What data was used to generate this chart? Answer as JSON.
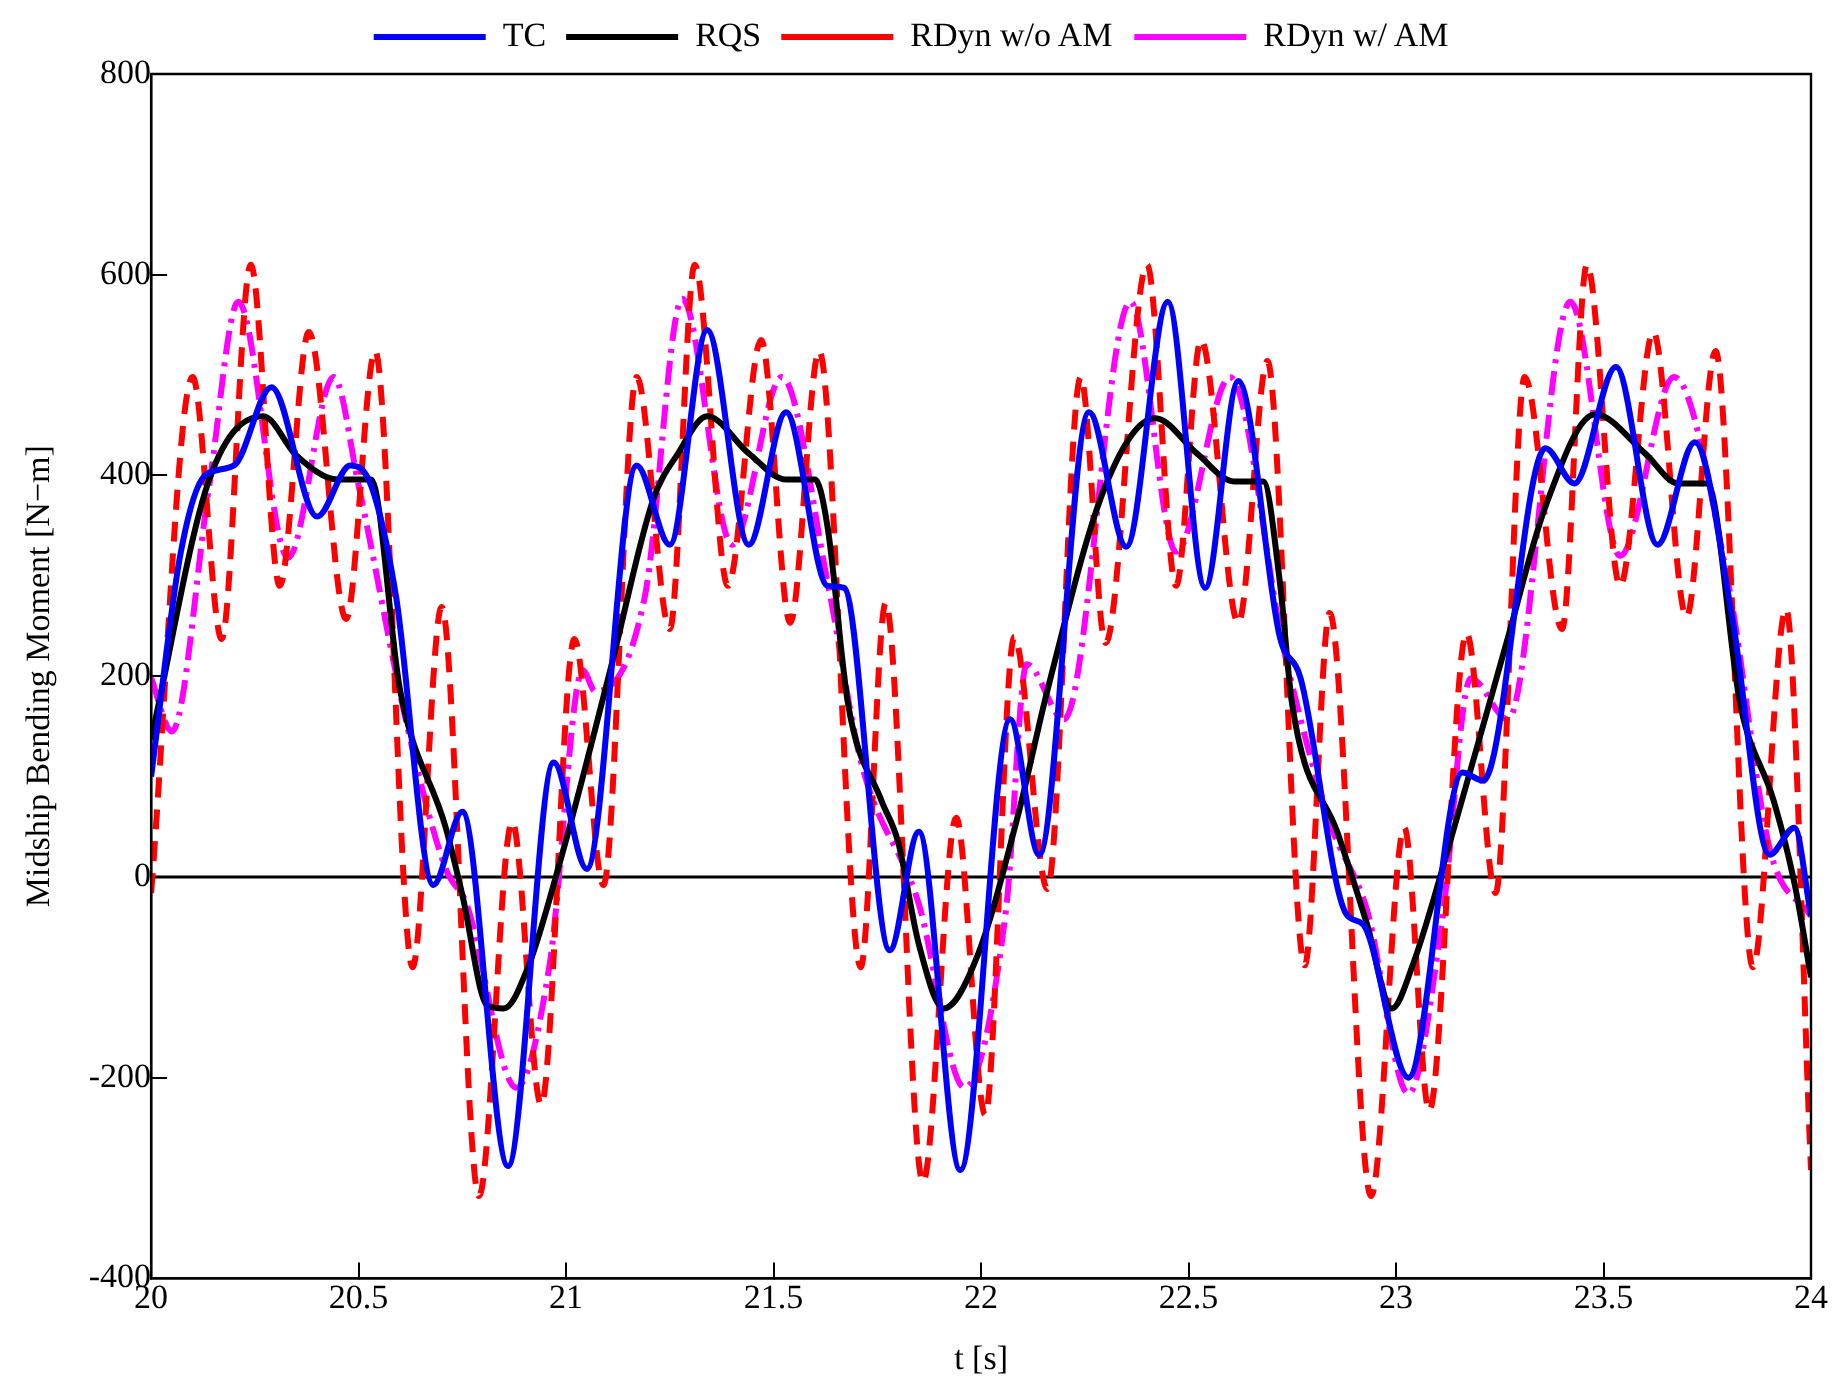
{
  "chart_data": {
    "type": "line",
    "xlabel": "t [s]",
    "ylabel": "Midship Bending Moment [N−m]",
    "xlim": [
      20,
      24
    ],
    "ylim": [
      -400,
      800
    ],
    "xticks": [
      20,
      20.5,
      21,
      21.5,
      22,
      22.5,
      23,
      23.5,
      24
    ],
    "yticks": [
      -400,
      -200,
      0,
      200,
      400,
      600,
      800
    ],
    "grid": false,
    "legend": "top",
    "marker": "none",
    "ref_lines": [
      {
        "axis": "y",
        "value": 0,
        "color": "#000000"
      }
    ],
    "series": [
      {
        "name": "TC",
        "color": "#0000ff",
        "line_style": "solid",
        "x": [
          20,
          20.07,
          20.13,
          20.2,
          20.29,
          20.4,
          20.48,
          20.53,
          20.59,
          20.68,
          20.75,
          20.86,
          20.97,
          21.05,
          21.17,
          21.25,
          21.34,
          21.44,
          21.53,
          21.63,
          21.67,
          21.78,
          21.85,
          21.95,
          22.07,
          22.14,
          22.26,
          22.35,
          22.45,
          22.54,
          22.62,
          22.72,
          22.77,
          22.88,
          22.92,
          23.03,
          23.16,
          23.21,
          23.36,
          23.43,
          23.53,
          23.63,
          23.72,
          23.81,
          23.9,
          23.96,
          24
        ],
        "values": [
          100,
          320,
          400,
          410,
          488,
          359,
          410,
          390,
          280,
          -8,
          65,
          -288,
          114,
          8,
          410,
          331,
          545,
          331,
          463,
          290,
          288,
          -73,
          45,
          -292,
          157,
          22,
          463,
          329,
          573,
          288,
          494,
          239,
          198,
          -37,
          -47,
          -200,
          104,
          96,
          427,
          392,
          508,
          331,
          433,
          259,
          22,
          49,
          -39
        ]
      },
      {
        "name": "RQS",
        "color": "#000000",
        "line_style": "solid",
        "x": [
          20,
          20.14,
          20.27,
          20.35,
          20.45,
          20.53,
          20.6,
          20.71,
          20.75,
          20.81,
          20.85,
          20.91,
          20.99,
          21.06,
          21.11,
          21.21,
          21.27,
          21.34,
          21.44,
          21.53,
          21.6,
          21.63,
          21.68,
          21.76,
          21.8,
          21.85,
          21.91,
          21.99,
          22.09,
          22.16,
          22.3,
          22.42,
          22.52,
          22.61,
          22.68,
          22.72,
          22.75,
          22.86,
          22.93,
          22.99,
          23.04,
          23.14,
          23.27,
          23.36,
          23.48,
          23.6,
          23.68,
          23.75,
          23.83,
          23.91,
          23.96,
          24
        ],
        "values": [
          137,
          396,
          459,
          420,
          396,
          396,
          186,
          49,
          -18,
          -128,
          -131,
          -88,
          22,
          131,
          212,
          376,
          422,
          459,
          422,
          396,
          396,
          349,
          171,
          76,
          35,
          -67,
          -131,
          -80,
          63,
          186,
          390,
          457,
          422,
          394,
          394,
          294,
          171,
          43,
          -47,
          -131,
          -88,
          49,
          239,
          369,
          461,
          422,
          392,
          392,
          171,
          76,
          -6,
          -100
        ]
      },
      {
        "name": "RDyn w/o AM",
        "color": "#ff0000",
        "line_style": "dashed",
        "x": [
          20,
          20.1,
          20.17,
          20.24,
          20.31,
          20.38,
          20.47,
          20.54,
          20.63,
          20.7,
          20.79,
          20.87,
          20.94,
          21.02,
          21.09,
          21.17,
          21.25,
          21.31,
          21.39,
          21.47,
          21.54,
          21.61,
          21.71,
          21.77,
          21.86,
          21.94,
          22.01,
          22.08,
          22.16,
          22.24,
          22.3,
          22.4,
          22.47,
          22.53,
          22.62,
          22.69,
          22.78,
          22.84,
          22.94,
          23.02,
          23.08,
          23.17,
          23.24,
          23.31,
          23.4,
          23.46,
          23.54,
          23.62,
          23.7,
          23.77,
          23.86,
          23.94,
          24
        ],
        "values": [
          -16,
          498,
          237,
          610,
          290,
          543,
          257,
          524,
          -90,
          269,
          -318,
          55,
          -227,
          237,
          -8,
          498,
          247,
          610,
          290,
          535,
          253,
          524,
          -90,
          273,
          -304,
          59,
          -237,
          239,
          -12,
          498,
          233,
          610,
          290,
          535,
          253,
          514,
          -88,
          263,
          -318,
          49,
          -233,
          243,
          -16,
          498,
          247,
          610,
          290,
          543,
          259,
          524,
          -90,
          267,
          -292
        ]
      },
      {
        "name": "RDyn w/ AM",
        "color": "#ff00ff",
        "line_style": "dashdot",
        "x": [
          20,
          20.05,
          20.14,
          20.21,
          20.33,
          20.44,
          20.5,
          20.62,
          20.71,
          20.76,
          20.88,
          20.96,
          21.04,
          21.07,
          21.19,
          21.28,
          21.4,
          21.52,
          21.63,
          21.71,
          21.85,
          21.96,
          22.06,
          22.11,
          22.2,
          22.36,
          22.47,
          22.6,
          22.73,
          22.84,
          22.93,
          23.03,
          23.11,
          23.18,
          23.27,
          23.42,
          23.54,
          23.67,
          23.8,
          23.9,
          24
        ],
        "values": [
          198,
          145,
          390,
          573,
          318,
          498,
          390,
          145,
          8,
          -27,
          -210,
          -88,
          206,
          185,
          280,
          576,
          331,
          498,
          294,
          116,
          -27,
          -210,
          -33,
          212,
          157,
          573,
          324,
          498,
          226,
          55,
          -33,
          -216,
          -47,
          198,
          157,
          573,
          320,
          498,
          294,
          29,
          -39
        ]
      }
    ]
  }
}
